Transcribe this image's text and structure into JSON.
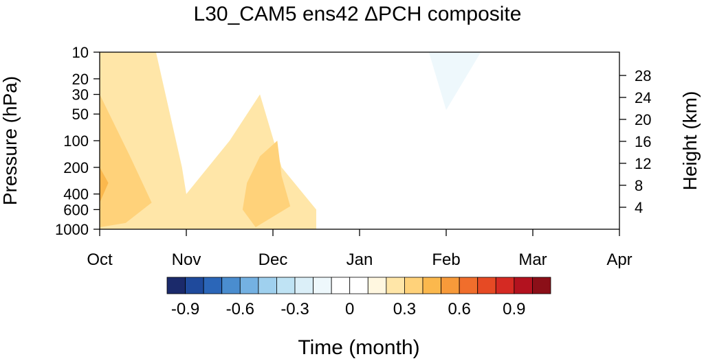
{
  "chart_data": {
    "type": "heatmap",
    "title": "L30_CAM5 ens42 ΔPCH composite",
    "xlabel": "Time (month)",
    "ylabel": "Pressure (hPa)",
    "ylabel_right": "Height (km)",
    "x_ticks": [
      "Oct",
      "Nov",
      "Dec",
      "Jan",
      "Feb",
      "Mar",
      "Apr"
    ],
    "y_ticks": [
      1000,
      600,
      400,
      200,
      100,
      50,
      30,
      20,
      10
    ],
    "y_scale": "log",
    "ylim": [
      1000,
      10
    ],
    "right_ticks": [
      4,
      8,
      12,
      16,
      20,
      24,
      28
    ],
    "grid": false,
    "colorbar": {
      "levels": [
        -1.1,
        -1.0,
        -0.9,
        -0.8,
        -0.7,
        -0.6,
        -0.5,
        -0.4,
        -0.3,
        -0.2,
        -0.1,
        0,
        0.1,
        0.2,
        0.3,
        0.4,
        0.5,
        0.6,
        0.7,
        0.8,
        0.9,
        1.0,
        1.1
      ],
      "tick_labels": [
        "-0.9",
        "-0.6",
        "-0.3",
        "0",
        "0.3",
        "0.6",
        "0.9"
      ],
      "tick_values": [
        -0.9,
        -0.6,
        -0.3,
        0,
        0.3,
        0.6,
        0.9
      ],
      "colors": [
        "#1b2a6b",
        "#1f4a9c",
        "#2b66b8",
        "#4a8dcf",
        "#74b1e2",
        "#9fd0ee",
        "#bfe3f4",
        "#dbeff8",
        "#eef8fc",
        "#ffffff",
        "#ffffff",
        "#fff7e0",
        "#ffe6a8",
        "#ffd27a",
        "#fbb84d",
        "#f79a3a",
        "#f06e2c",
        "#e64a24",
        "#d52a23",
        "#b3121f",
        "#8b0f18"
      ]
    },
    "regions": [
      {
        "value": 0.1,
        "points": [
          [
            0,
            10
          ],
          [
            0.65,
            10
          ],
          [
            0.95,
            200
          ],
          [
            1.0,
            400
          ],
          [
            1.5,
            100
          ],
          [
            1.85,
            30
          ],
          [
            2.1,
            200
          ],
          [
            2.5,
            600
          ],
          [
            2.5,
            1000
          ],
          [
            0,
            1000
          ]
        ]
      },
      {
        "value": 0.2,
        "points": [
          [
            0,
            30
          ],
          [
            0.35,
            150
          ],
          [
            0.6,
            500
          ],
          [
            0.3,
            850
          ],
          [
            0,
            950
          ]
        ]
      },
      {
        "value": 0.2,
        "points": [
          [
            1.7,
            300
          ],
          [
            1.85,
            150
          ],
          [
            2.05,
            100
          ],
          [
            2.1,
            250
          ],
          [
            2.2,
            550
          ],
          [
            1.8,
            950
          ],
          [
            1.65,
            600
          ]
        ]
      },
      {
        "value": 0.3,
        "points": [
          [
            0,
            200
          ],
          [
            0.1,
            300
          ],
          [
            0,
            500
          ]
        ]
      },
      {
        "value": -0.1,
        "points": [
          [
            3.1,
            10
          ],
          [
            5.0,
            10
          ],
          [
            5.0,
            40
          ],
          [
            5.2,
            90
          ],
          [
            5.0,
            200
          ],
          [
            4.3,
            600
          ],
          [
            3.7,
            250
          ],
          [
            3.2,
            100
          ]
        ]
      },
      {
        "value": -0.1,
        "points": [
          [
            3.0,
            1000
          ],
          [
            3.7,
            800
          ],
          [
            4.0,
            600
          ],
          [
            4.3,
            700
          ],
          [
            4.7,
            1000
          ]
        ]
      },
      {
        "value": -0.1,
        "points": [
          [
            5.55,
            1000
          ],
          [
            5.6,
            300
          ],
          [
            5.8,
            200
          ],
          [
            6,
            170
          ],
          [
            6,
            1000
          ]
        ]
      },
      {
        "value": -0.2,
        "points": [
          [
            3.6,
            10
          ],
          [
            4.8,
            10
          ],
          [
            4.3,
            250
          ],
          [
            4.0,
            300
          ],
          [
            3.9,
            100
          ]
        ]
      },
      {
        "value": -0.2,
        "points": [
          [
            3.8,
            1000
          ],
          [
            4.0,
            900
          ],
          [
            4.2,
            1000
          ]
        ]
      },
      {
        "value": -0.3,
        "points": [
          [
            3.8,
            10
          ],
          [
            4.4,
            10
          ],
          [
            4.0,
            45
          ]
        ]
      }
    ]
  }
}
